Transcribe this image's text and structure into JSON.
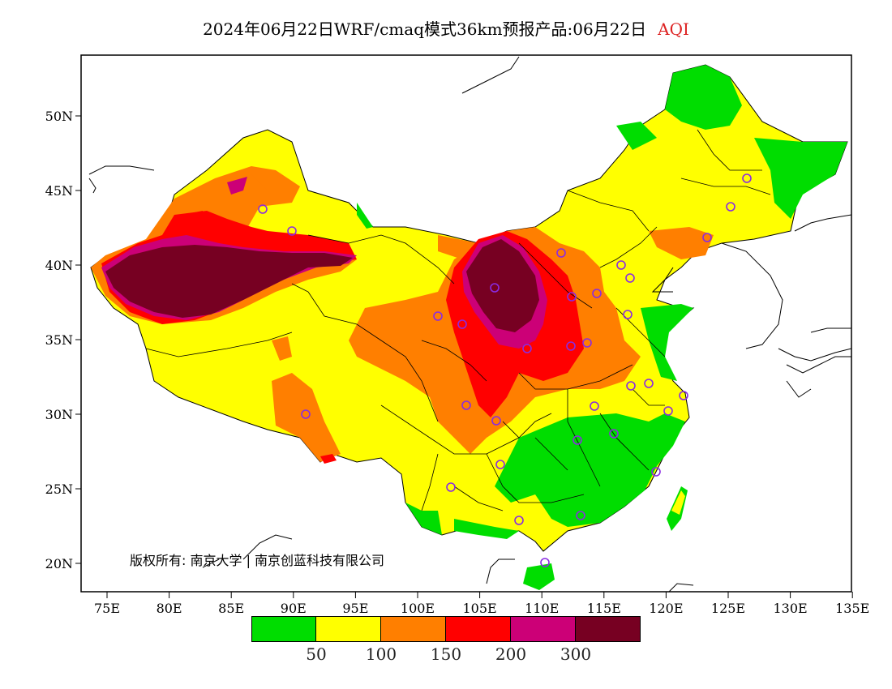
{
  "title": {
    "main": "2024年06月22日WRF/cmaq模式36km预报产品:06月22日",
    "product": "AQI"
  },
  "map": {
    "lon_ticks": [
      "75E",
      "80E",
      "85E",
      "90E",
      "95E",
      "100E",
      "105E",
      "110E",
      "115E",
      "120E",
      "125E",
      "130E",
      "135E"
    ],
    "lat_ticks": [
      "20N",
      "25N",
      "30N",
      "35N",
      "40N",
      "45N",
      "50N"
    ],
    "copyright": "版权所有: 南京大学 | 南京创蓝科技有限公司",
    "colors": {
      "good": "#00dd00",
      "moderate": "#ffff00",
      "unhealthy_sensitive": "#ff7f00",
      "unhealthy": "#ff0000",
      "very_unhealthy": "#cc0077",
      "hazardous": "#770022",
      "station_marker": "#8a2be2"
    }
  },
  "legend": {
    "colors": [
      "#00dd00",
      "#ffff00",
      "#ff7f00",
      "#ff0000",
      "#cc0077",
      "#770022"
    ],
    "labels": [
      "50",
      "100",
      "150",
      "200",
      "300"
    ]
  }
}
